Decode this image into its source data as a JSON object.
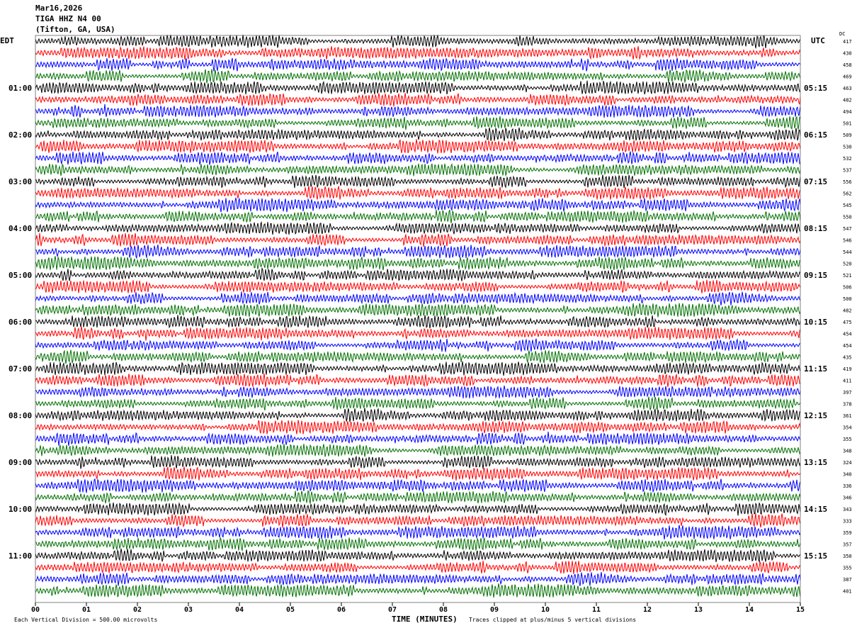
{
  "header": {
    "date": "Mar16,2026",
    "station": "TIGA HHZ N4 00",
    "location": "(Tifton, GA, USA)"
  },
  "left_axis_label": "EDT",
  "right_axis_label": "UTC",
  "dc_label": "DC",
  "footer": {
    "scale_note": "Each Vertical Division =  500.00 microvolts",
    "clip_note": "Traces clipped at plus/minus 5 vertical divisions"
  },
  "colors": {
    "trace_cycle": [
      "#000000",
      "#ff0000",
      "#0000ff",
      "#007000"
    ],
    "frame": "#808080"
  },
  "chart_data": {
    "type": "line",
    "title": "",
    "xlabel": "TIME (MINUTES)",
    "xlim": [
      0,
      15
    ],
    "x_ticks": [
      "00",
      "01",
      "02",
      "03",
      "04",
      "05",
      "06",
      "07",
      "08",
      "09",
      "10",
      "11",
      "12",
      "13",
      "14",
      "15"
    ],
    "trace_count": 48,
    "minutes_per_trace": 15,
    "left_hour_labels": [
      "01:00",
      "02:00",
      "03:00",
      "04:00",
      "05:00",
      "06:00",
      "07:00",
      "08:00",
      "09:00",
      "10:00",
      "11:00"
    ],
    "right_hour_labels": [
      "05:15",
      "06:15",
      "07:15",
      "08:15",
      "09:15",
      "10:15",
      "11:15",
      "12:15",
      "13:15",
      "14:15",
      "15:15"
    ],
    "dc_offsets": [
      417,
      430,
      458,
      469,
      463,
      482,
      494,
      501,
      509,
      530,
      532,
      537,
      556,
      562,
      545,
      550,
      547,
      546,
      544,
      520,
      521,
      506,
      500,
      482,
      475,
      454,
      454,
      435,
      419,
      411,
      397,
      378,
      361,
      354,
      355,
      348,
      324,
      340,
      336,
      346,
      343,
      333,
      359,
      357,
      350,
      355,
      387,
      401
    ],
    "grid": false
  }
}
